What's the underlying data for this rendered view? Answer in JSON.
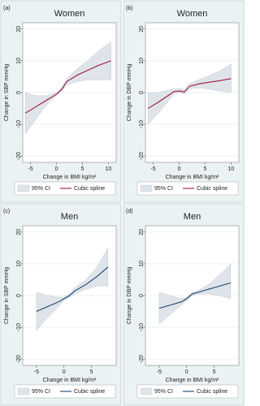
{
  "chart_data": [
    {
      "type": "line",
      "panel_label": "(a)",
      "title": "Women",
      "x_label": "Change in BMI kg/m²",
      "y_label": "Change in SBP mmHg",
      "xlim": [
        -6.5,
        11.5
      ],
      "xticks": [
        -5,
        0,
        5,
        10
      ],
      "ylim": [
        -22,
        22
      ],
      "yticks": [
        -20,
        -10,
        0,
        10,
        20
      ],
      "grid": true,
      "legend": "bottom",
      "x": [
        -6,
        -4,
        -2,
        -1,
        0,
        1,
        2,
        4,
        6,
        8,
        10.5
      ],
      "series": [
        {
          "name": "95% CI",
          "color": "#dfe4ea",
          "lower": [
            -13,
            -8.5,
            -4,
            -2.5,
            -1,
            0.5,
            2.5,
            3.5,
            4,
            4,
            4
          ],
          "upper": [
            0,
            -1,
            -1,
            -0.5,
            0,
            1.5,
            4.5,
            7.5,
            10,
            13,
            16
          ]
        },
        {
          "name": "Cubic spline",
          "color": "#a3173e",
          "values": [
            -6.5,
            -4.5,
            -2.5,
            -1.5,
            -0.5,
            1,
            3.5,
            5.5,
            7,
            8.5,
            10
          ]
        }
      ]
    },
    {
      "type": "line",
      "panel_label": "(b)",
      "title": "Women",
      "x_label": "Change in BMI kg/m²",
      "y_label": "Change in DBP mmHg",
      "xlim": [
        -6.5,
        11.5
      ],
      "xticks": [
        -5,
        0,
        5,
        10
      ],
      "ylim": [
        -22,
        22
      ],
      "yticks": [
        -20,
        -10,
        0,
        10,
        20
      ],
      "grid": true,
      "legend": "bottom",
      "x": [
        -6,
        -4,
        -2,
        -1,
        0,
        1,
        2,
        4,
        6,
        8,
        10
      ],
      "series": [
        {
          "name": "95% CI",
          "color": "#dfe4ea",
          "lower": [
            -10,
            -6.5,
            -2.5,
            -0.5,
            0,
            -0.5,
            1.2,
            1.5,
            1,
            0.5,
            0
          ],
          "upper": [
            0,
            0,
            0.8,
            1.2,
            1.2,
            1,
            2.8,
            4.2,
            5.5,
            7,
            9
          ]
        },
        {
          "name": "Cubic spline",
          "color": "#a3173e",
          "values": [
            -5,
            -3,
            -0.8,
            0.3,
            0.5,
            0.2,
            2,
            2.8,
            3.3,
            3.8,
            4.4
          ]
        }
      ]
    },
    {
      "type": "line",
      "panel_label": "(c)",
      "title": "Men",
      "x_label": "Change in BMI kg/m²",
      "y_label": "Change in SBP mmHg",
      "xlim": [
        -7.5,
        9.5
      ],
      "xticks": [
        -5,
        0,
        5
      ],
      "ylim": [
        -22,
        22
      ],
      "yticks": [
        -20,
        -10,
        0,
        10,
        20
      ],
      "grid": true,
      "legend": "bottom",
      "x": [
        -5,
        -3,
        -1,
        0,
        1,
        2,
        4,
        6,
        8
      ],
      "series": [
        {
          "name": "95% CI",
          "color": "#dfe4ea",
          "lower": [
            -11,
            -7,
            -3.5,
            -1.5,
            -0.5,
            0.5,
            2,
            3,
            3
          ],
          "upper": [
            1,
            0,
            -0.5,
            -0.5,
            0.5,
            2.5,
            5,
            9,
            15
          ]
        },
        {
          "name": "Cubic spline",
          "color": "#1a476f",
          "values": [
            -5,
            -3.5,
            -2,
            -1,
            0,
            1.5,
            3.5,
            6,
            9
          ]
        }
      ]
    },
    {
      "type": "line",
      "panel_label": "(d)",
      "title": "Men",
      "x_label": "Change in BMI kg/m²",
      "y_label": "Change in DBP mmHg",
      "xlim": [
        -7.5,
        9.5
      ],
      "xticks": [
        -5,
        0,
        5
      ],
      "ylim": [
        -22,
        22
      ],
      "yticks": [
        -20,
        -10,
        0,
        10,
        20
      ],
      "grid": true,
      "legend": "bottom",
      "x": [
        -5,
        -3,
        -1,
        0,
        1,
        2,
        4,
        6,
        8
      ],
      "series": [
        {
          "name": "95% CI",
          "color": "#dfe4ea",
          "lower": [
            -9,
            -6,
            -3,
            -1.5,
            0,
            0.5,
            0.5,
            0,
            -1
          ],
          "upper": [
            1,
            0,
            -1,
            -0.5,
            1,
            1.5,
            3.5,
            6.5,
            10
          ]
        },
        {
          "name": "Cubic spline",
          "color": "#1a476f",
          "values": [
            -4,
            -3,
            -2,
            -1,
            0.5,
            1,
            2,
            3,
            4
          ]
        }
      ]
    }
  ]
}
